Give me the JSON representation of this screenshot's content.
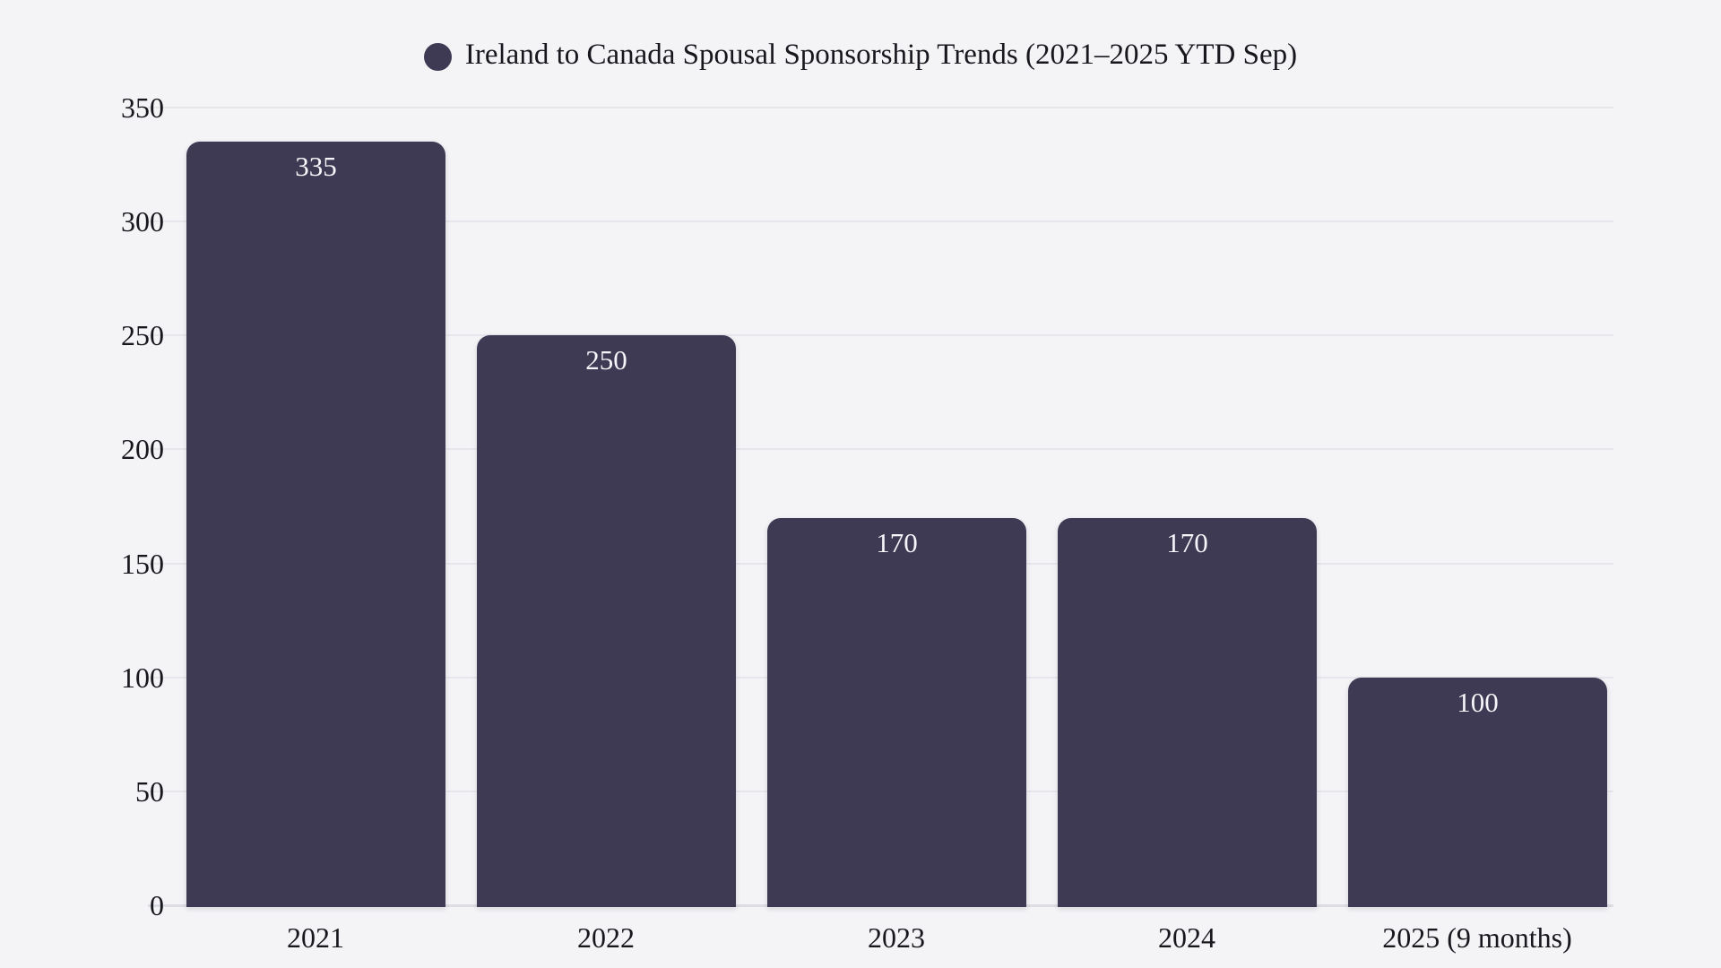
{
  "chart_data": {
    "type": "bar",
    "title": "Ireland to Canada Spousal Sponsorship Trends (2021–2025 YTD Sep)",
    "categories": [
      "2021",
      "2022",
      "2023",
      "2024",
      "2025 (9 months)"
    ],
    "values": [
      335,
      250,
      170,
      170,
      100
    ],
    "series": [
      {
        "name": "Ireland to Canada Spousal Sponsorship Trends (2021–2025 YTD Sep)",
        "values": [
          335,
          250,
          170,
          170,
          100
        ]
      }
    ],
    "value_labels": [
      "335",
      "250",
      "170",
      "170",
      "100"
    ],
    "xlabel": "",
    "ylabel": "",
    "ylim": [
      0,
      350
    ],
    "yticks": [
      0,
      50,
      100,
      150,
      200,
      250,
      300,
      350
    ],
    "grid": true,
    "legend_position": "top-center",
    "colors": {
      "bar": "#3e3a54",
      "background": "#f4f4f7",
      "gridline": "#e6e6ec",
      "axis_line": "#dcdce4",
      "text": "#17171e",
      "value_label": "#f6f5f9"
    }
  }
}
